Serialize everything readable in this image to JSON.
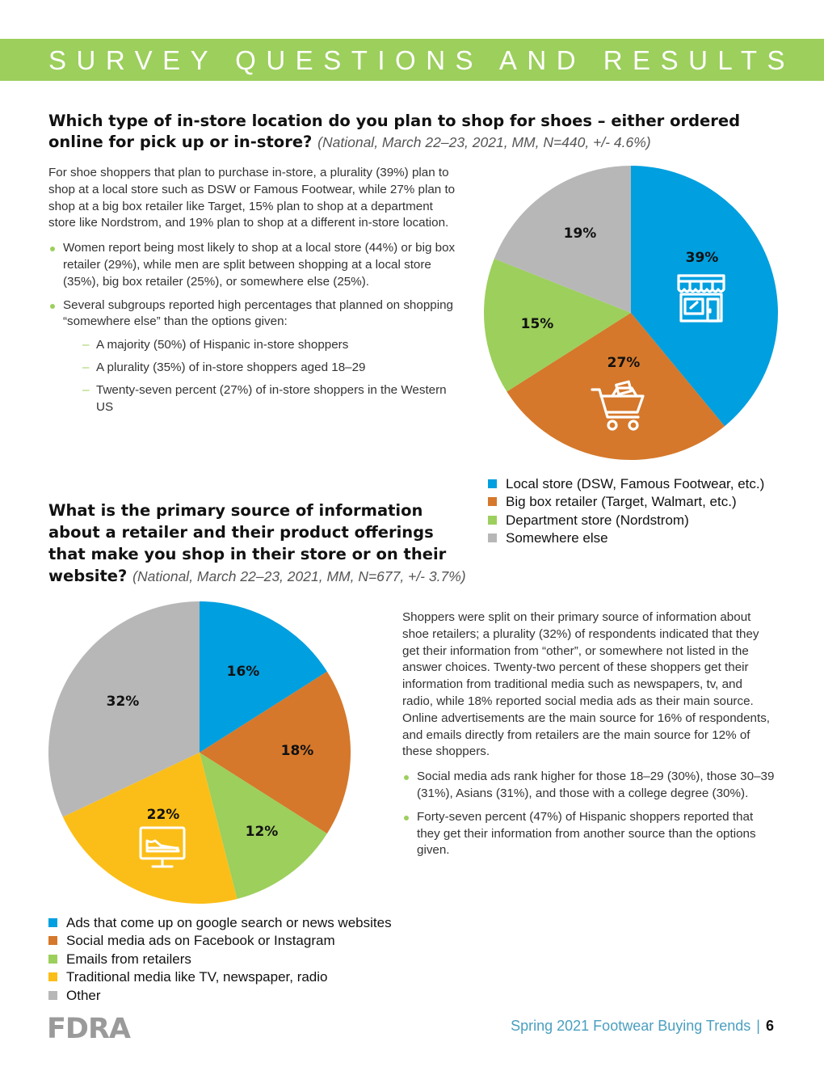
{
  "header": {
    "title": "SURVEY QUESTIONS AND RESULTS"
  },
  "colors": {
    "accent_green": "#9ccf5c",
    "blue": "#009fdf",
    "orange": "#d5782b",
    "green": "#9ccf5c",
    "yellow": "#fbbe18",
    "gray": "#b7b7b7"
  },
  "q1": {
    "question": "Which type of in-store location do you plan to shop for shoes – either ordered online for pick up or in-store?",
    "meta": "(National, March 22–23, 2021, MM, N=440, +/- 4.6%)",
    "paragraph": "For shoe shoppers that plan to purchase in-store, a plurality (39%) plan to shop at a local store such as DSW or Famous Footwear, while 27% plan to shop at a big box retailer like Target, 15% plan to shop at a department store like Nordstrom, and 19% plan to shop at a different in-store location.",
    "bullets": [
      "Women report being most likely to shop at a local store (44%) or big box retailer (29%), while men are split between shopping at a local store (35%), big box retailer (25%), or somewhere else (25%).",
      "Several subgroups reported high percentages that planned on shopping “somewhere else” than the options given:"
    ],
    "subbullets": [
      "A majority (50%) of Hispanic in-store shoppers",
      "A plurality (35%) of in-store shoppers aged 18–29",
      "Twenty-seven percent (27%) of in-store shoppers in the Western US"
    ],
    "icons": [
      "storefront-icon",
      "shopping-cart-icon"
    ]
  },
  "q2": {
    "question": "What is the primary source of information about a retailer and their product offerings that make you shop in their store or on their website?",
    "meta": "(National, March 22–23, 2021, MM, N=677, +/- 3.7%)",
    "paragraph": "Shoppers were split on their primary source of information about shoe retailers; a plurality (32%) of respondents indicated that they get their information from “other”, or somewhere not listed in the answer choices. Twenty-two percent of these shoppers get their information from traditional media such as newspapers, tv, and radio, while 18% reported social media ads as their main source. Online advertisements are the main source for 16% of respondents, and emails directly from retailers are the main source for 12% of these shoppers.",
    "bullets": [
      "Social media ads rank higher for those 18–29 (30%), those 30–39 (31%), Asians (31%), and those with a college degree (30%).",
      "Forty-seven percent (47%) of Hispanic shoppers reported that they get their information from another source than the options given."
    ],
    "icons": [
      "tv-sneaker-icon"
    ]
  },
  "chart_data": [
    {
      "type": "pie",
      "title": "",
      "categories": [
        "Local store (DSW, Famous Footwear, etc.)",
        "Big box retailer (Target, Walmart, etc.)",
        "Department store (Nordstrom)",
        "Somewhere else"
      ],
      "values": [
        39,
        27,
        15,
        19
      ],
      "labels": [
        "39%",
        "27%",
        "15%",
        "19%"
      ],
      "colors": [
        "#009fdf",
        "#d5782b",
        "#9ccf5c",
        "#b7b7b7"
      ],
      "legend_position": "bottom"
    },
    {
      "type": "pie",
      "title": "",
      "categories": [
        "Ads that come up on google search or news websites",
        "Social media ads on Facebook or Instagram",
        "Emails from retailers",
        "Traditional media like TV, newspaper, radio",
        "Other"
      ],
      "values": [
        16,
        18,
        12,
        22,
        32
      ],
      "labels": [
        "16%",
        "18%",
        "12%",
        "22%",
        "32%"
      ],
      "colors": [
        "#009fdf",
        "#d5782b",
        "#9ccf5c",
        "#fbbe18",
        "#b7b7b7"
      ],
      "legend_position": "bottom"
    }
  ],
  "footer": {
    "logo": "FDRA",
    "text": "Spring 2021 Footwear Buying Trends",
    "separator": "|",
    "page": "6"
  }
}
